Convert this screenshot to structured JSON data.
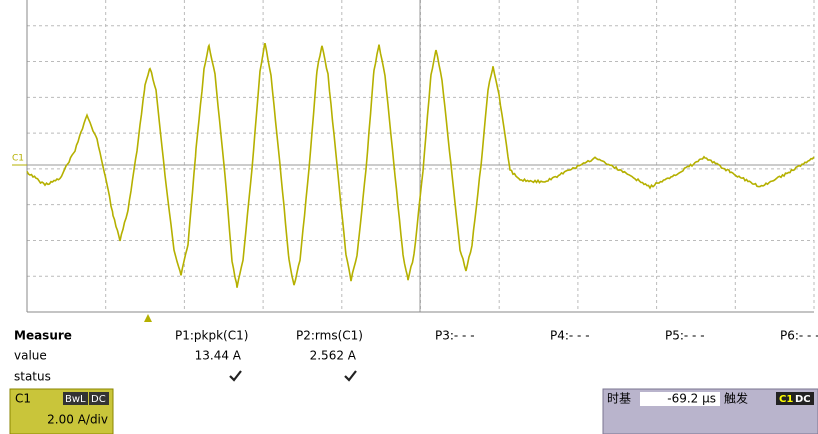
{
  "trace": {
    "label": "C1"
  },
  "measure": {
    "title": "Measure",
    "params": [
      "P1:pkpk(C1)",
      "P2:rms(C1)",
      "P3:- - -",
      "P4:- - -",
      "P5:- - -",
      "P6:- - -"
    ],
    "row_labels": [
      "value",
      "status"
    ],
    "values": [
      "13.44 A",
      "2.562 A"
    ]
  },
  "channel": {
    "name": "C1",
    "badges": [
      "BwL",
      "DC"
    ],
    "scale": "2.00 A/div"
  },
  "timebase": {
    "label": "时基",
    "delay": "-69.2 µs",
    "trigger_label": "触发",
    "trigger_source": "C1",
    "trigger_coupling": "DC"
  }
}
